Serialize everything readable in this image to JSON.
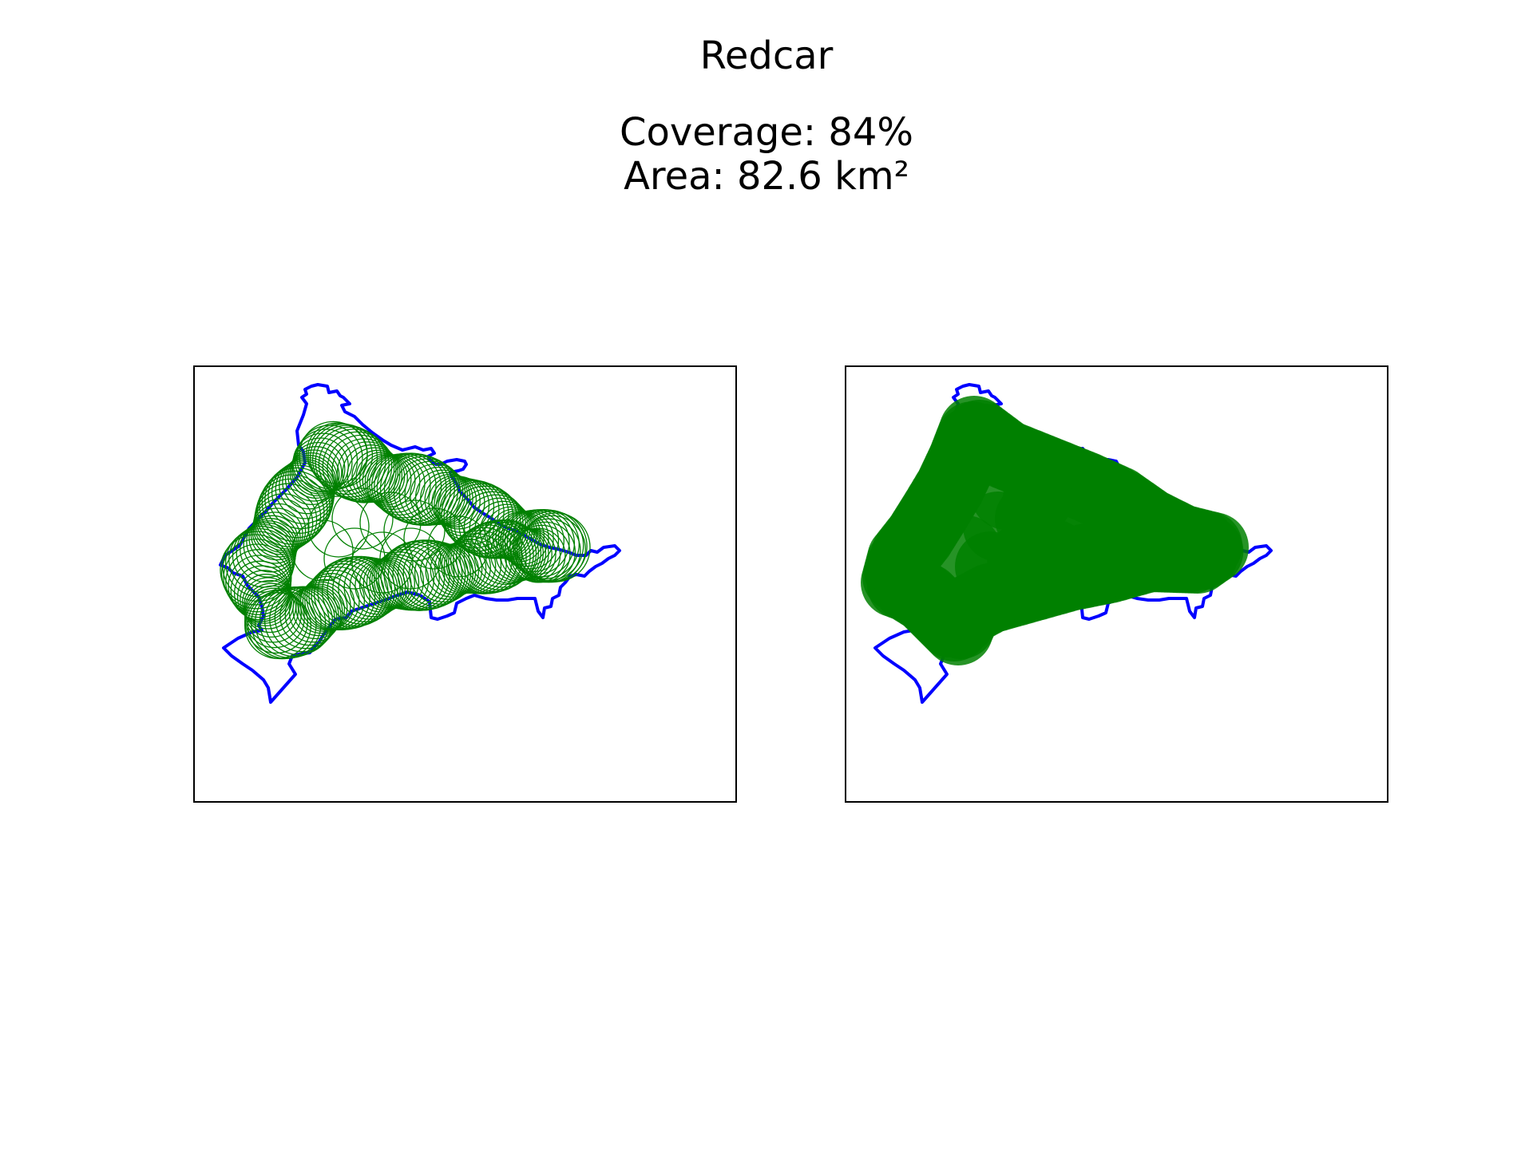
{
  "figure": {
    "title": "Redcar",
    "coverage_label": "Coverage: 84%",
    "area_label": "Area: 82.6 km²"
  },
  "chart_data": {
    "type": "map",
    "title": "Redcar",
    "coverage_percent": 84,
    "area_km2": 82.6,
    "panels": [
      {
        "name": "coverage-circles-outline",
        "style": "outlined circles"
      },
      {
        "name": "coverage-circles-filled",
        "style": "filled circles"
      }
    ],
    "colors": {
      "boundary": "#0000ff",
      "coverage": "#008000",
      "frame": "#000000"
    }
  }
}
